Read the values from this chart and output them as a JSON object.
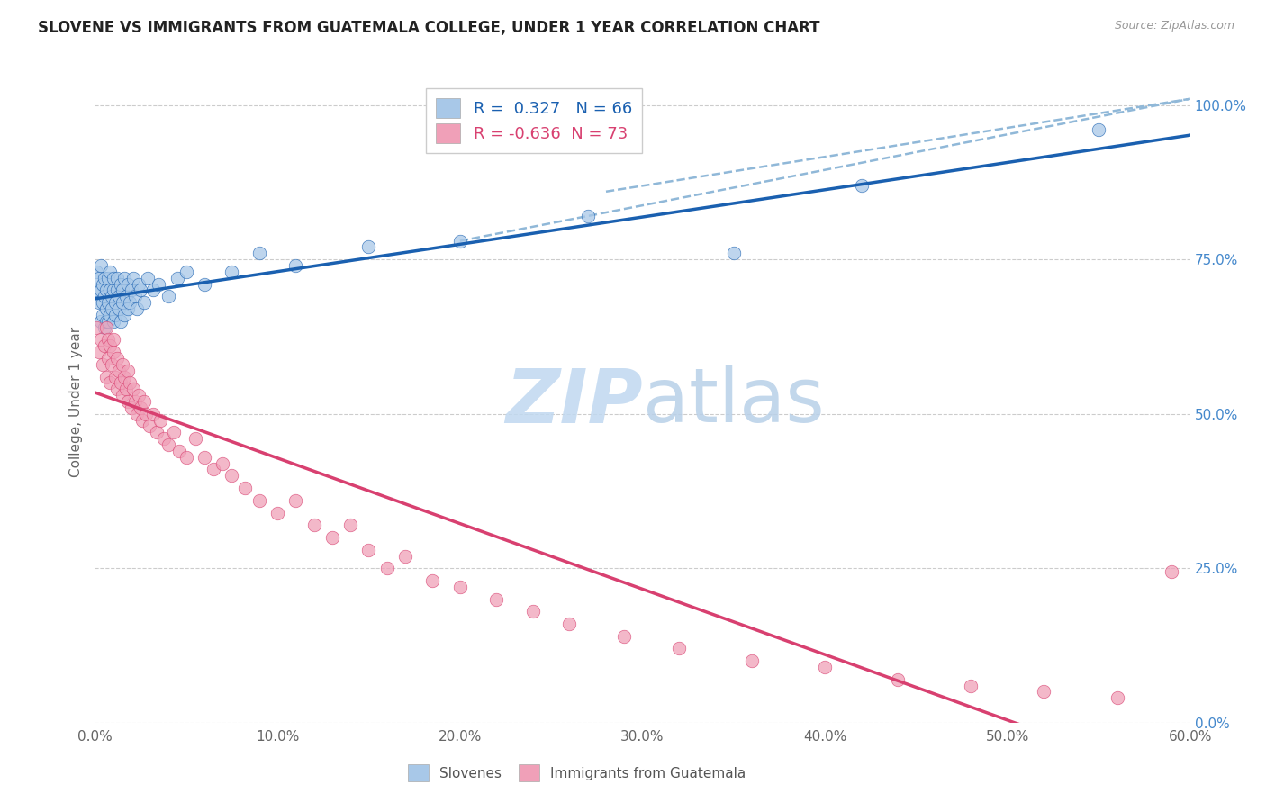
{
  "title": "SLOVENE VS IMMIGRANTS FROM GUATEMALA COLLEGE, UNDER 1 YEAR CORRELATION CHART",
  "source": "Source: ZipAtlas.com",
  "ylabel": "College, Under 1 year",
  "xlabel_ticks": [
    "0.0%",
    "10.0%",
    "20.0%",
    "30.0%",
    "40.0%",
    "50.0%",
    "60.0%"
  ],
  "ylabel_ticks": [
    "0.0%",
    "25.0%",
    "50.0%",
    "75.0%",
    "100.0%"
  ],
  "xmin": 0.0,
  "xmax": 0.6,
  "ymin": 0.0,
  "ymax": 1.0,
  "r_slovene": 0.327,
  "n_slovene": 66,
  "r_guatemala": -0.636,
  "n_guatemala": 73,
  "legend_label_1": "Slovenes",
  "legend_label_2": "Immigrants from Guatemala",
  "color_blue": "#a8c8e8",
  "color_pink": "#f0a0b8",
  "line_blue": "#1a60b0",
  "line_pink": "#d84070",
  "dashed_color": "#90b8d8",
  "watermark_zip_color": "#c0d8f0",
  "watermark_atlas_color": "#b8d0e8",
  "slovene_x": [
    0.001,
    0.001,
    0.002,
    0.002,
    0.003,
    0.003,
    0.003,
    0.004,
    0.004,
    0.004,
    0.005,
    0.005,
    0.005,
    0.006,
    0.006,
    0.006,
    0.007,
    0.007,
    0.007,
    0.008,
    0.008,
    0.008,
    0.009,
    0.009,
    0.01,
    0.01,
    0.01,
    0.011,
    0.011,
    0.012,
    0.012,
    0.013,
    0.013,
    0.014,
    0.014,
    0.015,
    0.015,
    0.016,
    0.016,
    0.017,
    0.018,
    0.018,
    0.019,
    0.02,
    0.021,
    0.022,
    0.023,
    0.024,
    0.025,
    0.027,
    0.029,
    0.032,
    0.035,
    0.04,
    0.045,
    0.05,
    0.06,
    0.075,
    0.09,
    0.11,
    0.15,
    0.2,
    0.27,
    0.35,
    0.42,
    0.55
  ],
  "slovene_y": [
    0.7,
    0.73,
    0.68,
    0.72,
    0.65,
    0.7,
    0.74,
    0.66,
    0.71,
    0.68,
    0.64,
    0.69,
    0.72,
    0.67,
    0.7,
    0.65,
    0.68,
    0.72,
    0.65,
    0.7,
    0.66,
    0.73,
    0.67,
    0.69,
    0.65,
    0.7,
    0.72,
    0.68,
    0.66,
    0.7,
    0.72,
    0.67,
    0.69,
    0.65,
    0.71,
    0.68,
    0.7,
    0.66,
    0.72,
    0.69,
    0.67,
    0.71,
    0.68,
    0.7,
    0.72,
    0.69,
    0.67,
    0.71,
    0.7,
    0.68,
    0.72,
    0.7,
    0.71,
    0.69,
    0.72,
    0.73,
    0.71,
    0.73,
    0.76,
    0.74,
    0.77,
    0.78,
    0.82,
    0.76,
    0.87,
    0.96
  ],
  "guatemala_x": [
    0.001,
    0.002,
    0.003,
    0.004,
    0.005,
    0.006,
    0.006,
    0.007,
    0.007,
    0.008,
    0.008,
    0.009,
    0.01,
    0.01,
    0.011,
    0.012,
    0.012,
    0.013,
    0.014,
    0.015,
    0.015,
    0.016,
    0.017,
    0.018,
    0.018,
    0.019,
    0.02,
    0.021,
    0.022,
    0.023,
    0.024,
    0.025,
    0.026,
    0.027,
    0.028,
    0.03,
    0.032,
    0.034,
    0.036,
    0.038,
    0.04,
    0.043,
    0.046,
    0.05,
    0.055,
    0.06,
    0.065,
    0.07,
    0.075,
    0.082,
    0.09,
    0.1,
    0.11,
    0.12,
    0.13,
    0.14,
    0.15,
    0.16,
    0.17,
    0.185,
    0.2,
    0.22,
    0.24,
    0.26,
    0.29,
    0.32,
    0.36,
    0.4,
    0.44,
    0.48,
    0.52,
    0.56,
    0.59
  ],
  "guatemala_y": [
    0.64,
    0.6,
    0.62,
    0.58,
    0.61,
    0.64,
    0.56,
    0.59,
    0.62,
    0.55,
    0.61,
    0.58,
    0.6,
    0.62,
    0.56,
    0.59,
    0.54,
    0.57,
    0.55,
    0.58,
    0.53,
    0.56,
    0.54,
    0.57,
    0.52,
    0.55,
    0.51,
    0.54,
    0.52,
    0.5,
    0.53,
    0.51,
    0.49,
    0.52,
    0.5,
    0.48,
    0.5,
    0.47,
    0.49,
    0.46,
    0.45,
    0.47,
    0.44,
    0.43,
    0.46,
    0.43,
    0.41,
    0.42,
    0.4,
    0.38,
    0.36,
    0.34,
    0.36,
    0.32,
    0.3,
    0.32,
    0.28,
    0.25,
    0.27,
    0.23,
    0.22,
    0.2,
    0.18,
    0.16,
    0.14,
    0.12,
    0.1,
    0.09,
    0.07,
    0.06,
    0.05,
    0.04,
    0.245
  ]
}
